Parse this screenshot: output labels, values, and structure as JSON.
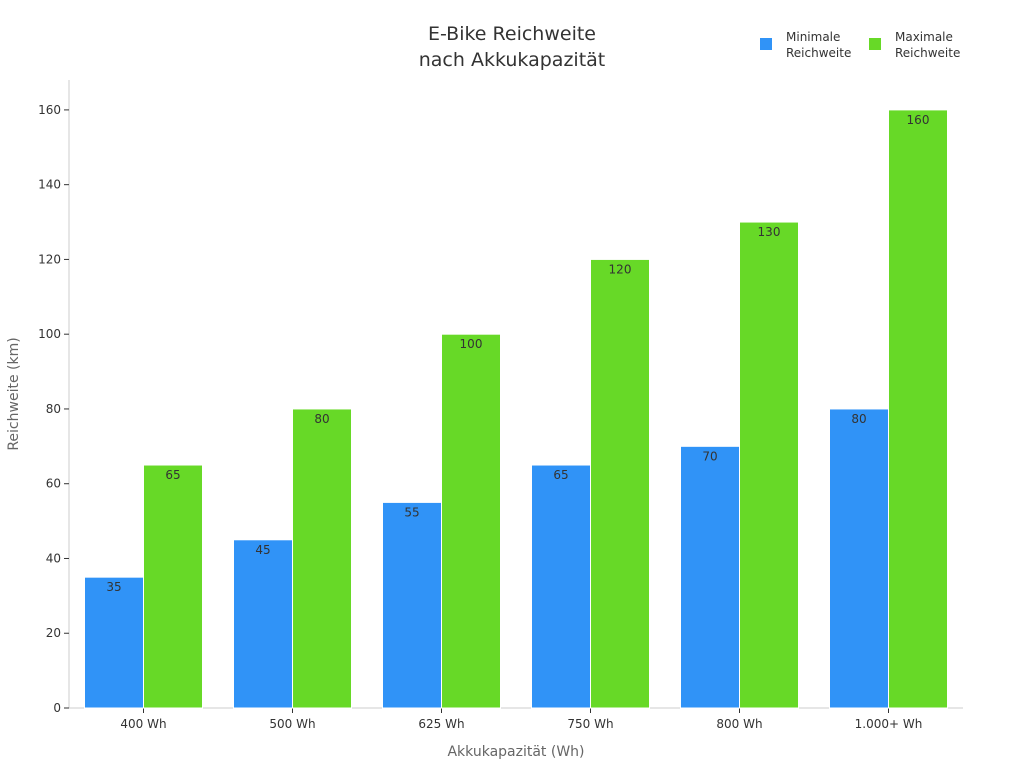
{
  "chart_data": {
    "type": "bar",
    "title": "E-Bike Reichweite nach Akkukapazität",
    "title_lines": [
      "E-Bike Reichweite",
      "nach Akkukapazität"
    ],
    "xlabel": "Akkukapazität (Wh)",
    "ylabel": "Reichweite (km)",
    "categories": [
      "400 Wh",
      "500 Wh",
      "625 Wh",
      "750 Wh",
      "800 Wh",
      "1.000+ Wh"
    ],
    "series": [
      {
        "name": "Minimale Reichweite",
        "name_lines": [
          "Minimale",
          "Reichweite"
        ],
        "color": "#3093f7",
        "values": [
          35,
          45,
          55,
          65,
          70,
          80
        ]
      },
      {
        "name": "Maximale Reichweite",
        "name_lines": [
          "Maximale",
          "Reichweite"
        ],
        "color": "#67d927",
        "values": [
          65,
          80,
          100,
          120,
          130,
          160
        ]
      }
    ],
    "ylim": [
      0,
      168
    ],
    "yticks": [
      0,
      20,
      40,
      60,
      80,
      100,
      120,
      140,
      160
    ],
    "grid": false,
    "legend_position": "top-right",
    "data_labels": true
  }
}
